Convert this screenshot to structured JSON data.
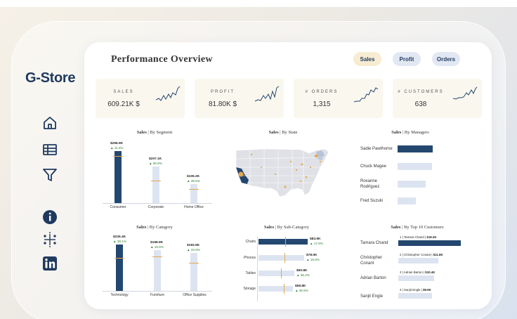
{
  "brand": "G-Store",
  "sidebar": {
    "nav": [
      {
        "name": "home-icon"
      },
      {
        "name": "table-icon"
      },
      {
        "name": "filter-icon"
      }
    ],
    "links": [
      {
        "name": "info-icon"
      },
      {
        "name": "tableau-icon"
      },
      {
        "name": "linkedin-icon"
      }
    ]
  },
  "header": {
    "title": "Performance  Overview",
    "tabs": [
      "Sales",
      "Profit",
      "Orders"
    ],
    "active_tab": "Sales"
  },
  "kpis": [
    {
      "label": "SALES",
      "value": "609.21K $"
    },
    {
      "label": "PROFIT",
      "value": "81.80K $"
    },
    {
      "label": "# ORDERS",
      "value": "1,315"
    },
    {
      "label": "# CUSTOMERS",
      "value": "638"
    }
  ],
  "charts": {
    "segment": {
      "title_bold": "Sales",
      "title_rest": " | By Segment",
      "labels": [
        "Consumer",
        "Corporate",
        "Home Office"
      ],
      "values_text": [
        "$296.9K",
        "$207.1K",
        "$105.2K"
      ],
      "pcts": [
        "▲ 11.4%",
        "▲ 60.9%",
        "▲ 39.5%"
      ]
    },
    "state": {
      "title_bold": "Sales",
      "title_rest": " | By State"
    },
    "managers": {
      "title_bold": "Sales",
      "title_rest": " | By Managers",
      "names": [
        "Sadie Pawthorne",
        "Chuck Magee",
        "Roxanne\nRodriguez",
        "Fred Suzuki"
      ]
    },
    "category": {
      "title_bold": "Sales",
      "title_rest": " | By Category",
      "labels": [
        "Technology",
        "Furniture",
        "Office Supplies"
      ],
      "values_text": [
        "$226.4K",
        "$198.9K",
        "$183.9K"
      ],
      "pcts": [
        "▲ 39.1%",
        "▲ 16.6%",
        "▲ 34.6%"
      ]
    },
    "subcategory": {
      "title_bold": "Sales",
      "title_rest": " | By Sub-Category",
      "labels": [
        "Chairs",
        "Phones",
        "Tables",
        "Storage"
      ],
      "values_text": [
        "$83.9K",
        "$78.0K",
        "$60.8K",
        "$58.8K"
      ],
      "pcts": [
        "▲ 17.8%",
        "▲ 15.6%",
        "▲ 55.4%",
        "▲ 30.5%"
      ]
    },
    "customers": {
      "title_bold": "Sales",
      "title_rest": " | By Top 10 Customers",
      "names": [
        "Tamara Chand",
        "Christopher\nConant",
        "Adrian Barton",
        "Sanjit Engle"
      ],
      "rank_labels": [
        {
          "rank": "1",
          "name": "Tamara Chand",
          "value": "$18.3K"
        },
        {
          "rank": "2",
          "name": "Christopher Conant",
          "value": "$11.8K"
        },
        {
          "rank": "3",
          "name": "Adrian Barton",
          "value": "$10.4K"
        },
        {
          "rank": "4",
          "name": "Sanjit Engle",
          "value": "$9.9K"
        }
      ]
    }
  },
  "chart_data": [
    {
      "type": "bar",
      "categories": [
        "Consumer",
        "Corporate",
        "Home Office"
      ],
      "values": [
        296.9,
        207.1,
        105.2
      ],
      "title": "Sales | By Segment"
    },
    {
      "type": "bar",
      "categories": [
        "Technology",
        "Furniture",
        "Office Supplies"
      ],
      "values": [
        226.4,
        198.9,
        183.9
      ],
      "title": "Sales | By Category"
    },
    {
      "type": "bar",
      "categories": [
        "Chairs",
        "Phones",
        "Tables",
        "Storage"
      ],
      "values": [
        83.9,
        78.0,
        60.8,
        58.8
      ],
      "title": "Sales | By Sub-Category"
    },
    {
      "type": "bar",
      "categories": [
        "Tamara Chand",
        "Christopher Conant",
        "Adrian Barton",
        "Sanjit Engle"
      ],
      "values": [
        18.3,
        11.8,
        10.4,
        9.9
      ],
      "title": "Sales | By Top 10 Customers"
    },
    {
      "type": "bar",
      "categories": [
        "Sadie Pawthorne",
        "Chuck Magee",
        "Roxanne Rodriguez",
        "Fred Suzuki"
      ],
      "values": [
        1.0,
        0.98,
        0.8,
        0.52
      ],
      "title": "Sales | By Managers"
    }
  ],
  "colors": {
    "primary": "#24476f",
    "light_bar": "#dde4f1",
    "target": "#e3a94b",
    "up": "#2e7d32",
    "kpi_bg": "#faf7ef",
    "active_pill": "#f7ecd1",
    "pill": "#e2e8f3"
  }
}
